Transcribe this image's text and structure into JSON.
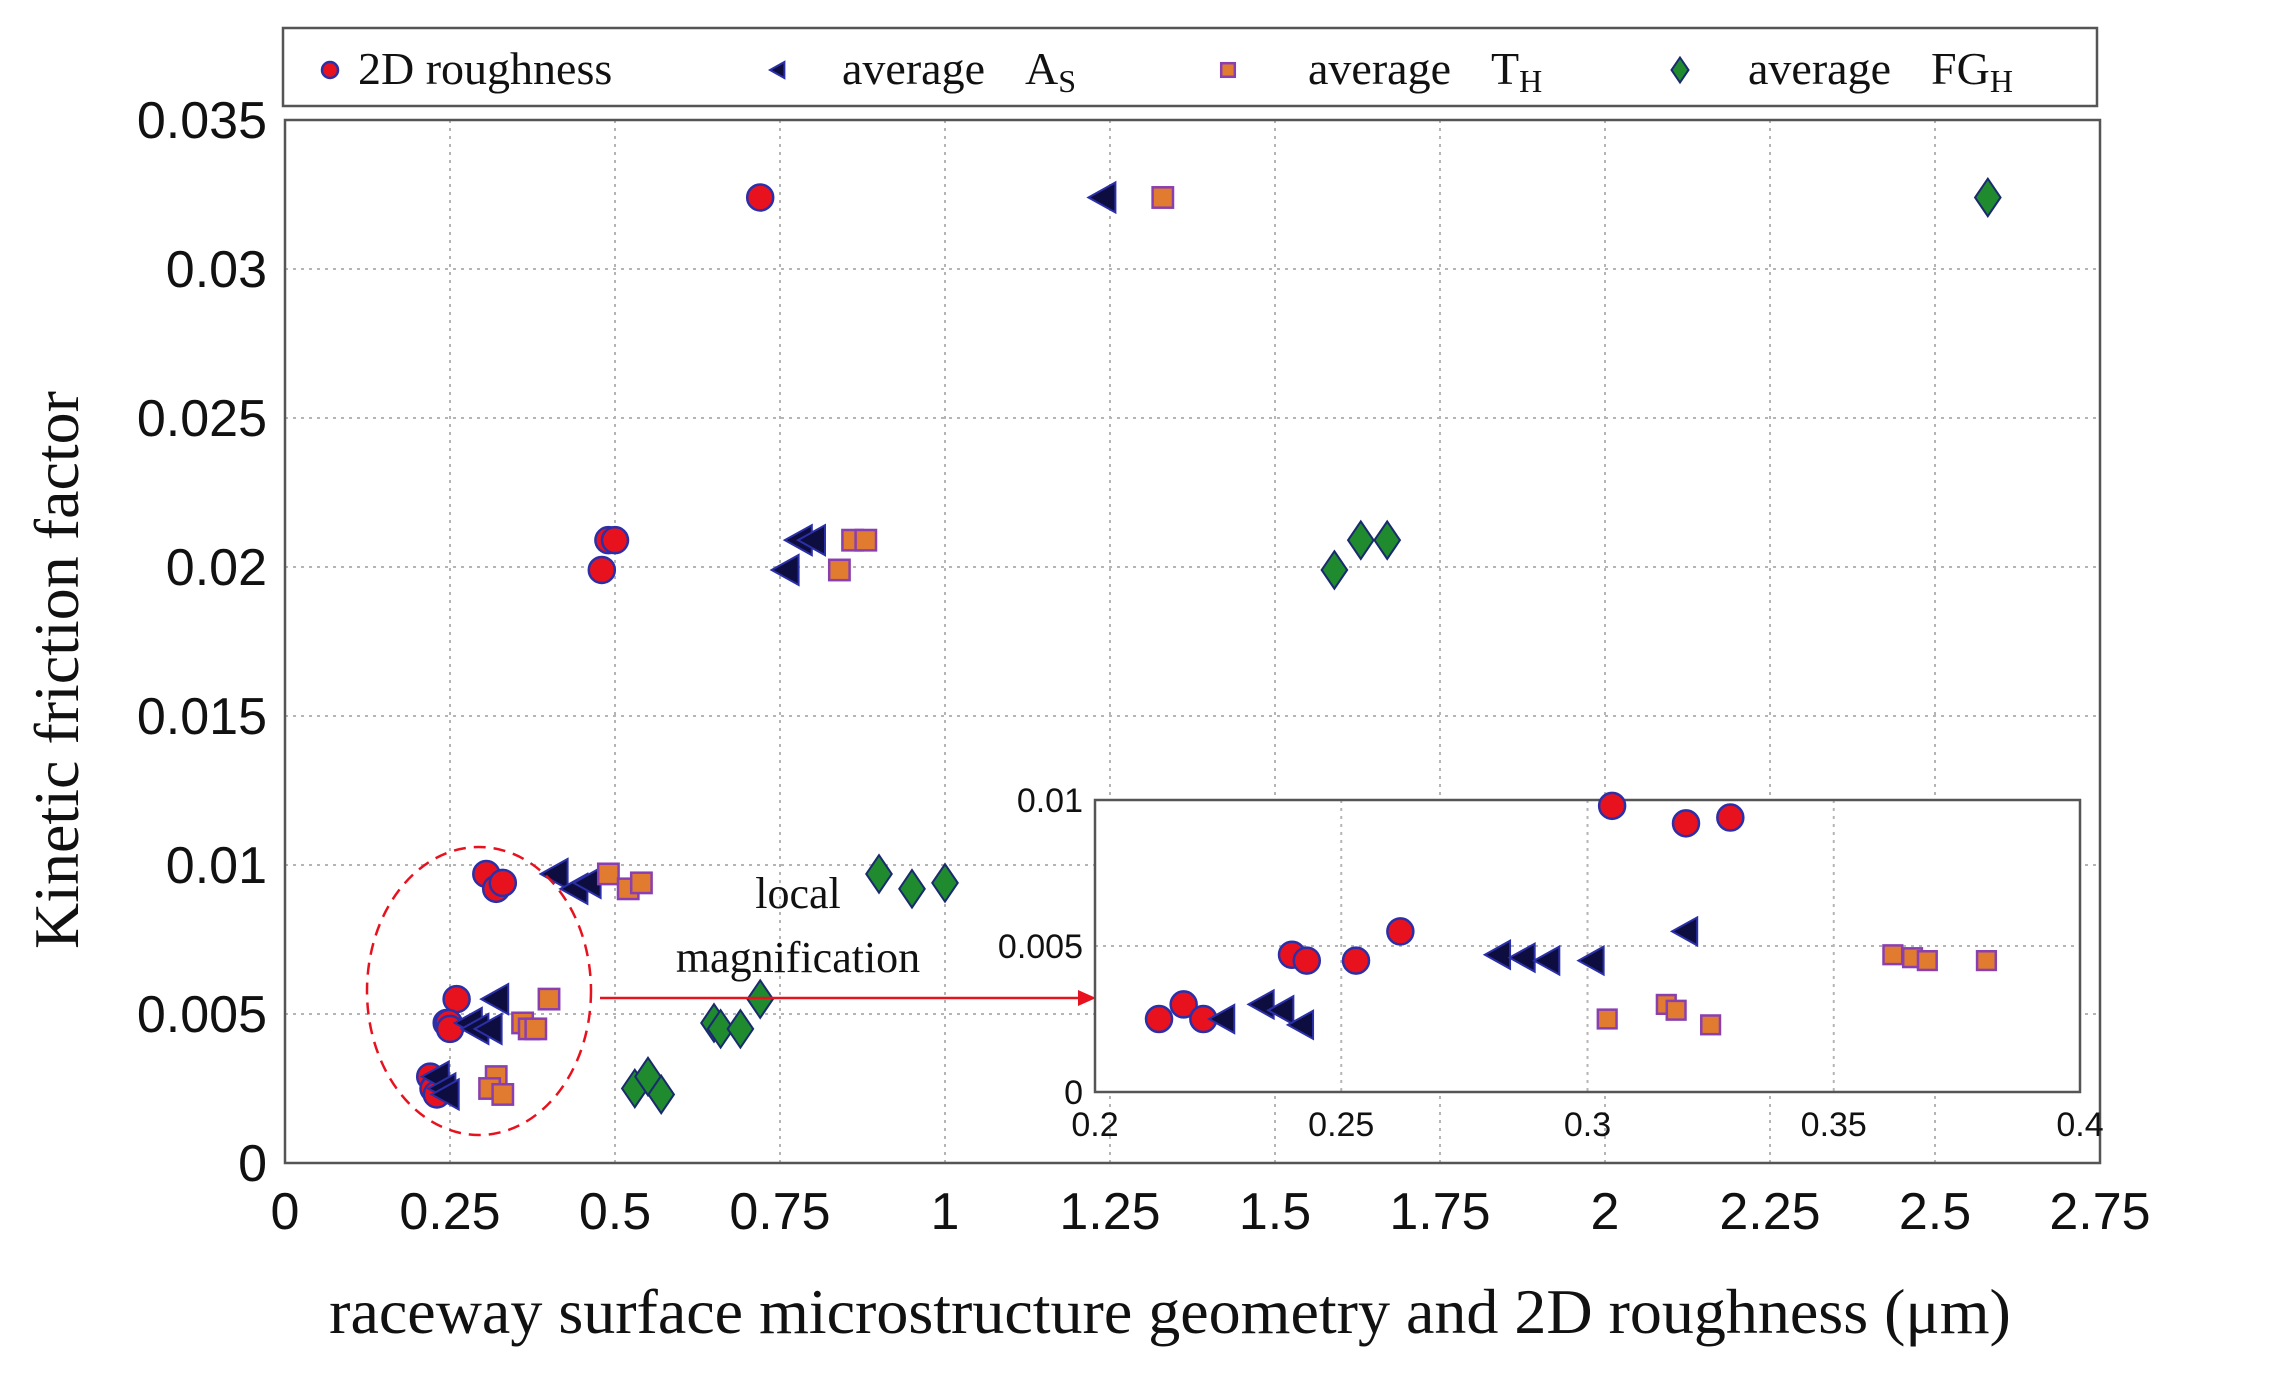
{
  "chart_data": {
    "type": "scatter",
    "main": {
      "xlabel": "raceway surface microstructure geometry and 2D roughness (μm)",
      "ylabel": "Kinetic friction factor",
      "xlim": [
        0,
        2.75
      ],
      "ylim": [
        0,
        0.035
      ],
      "xticks": [
        "0",
        "0.25",
        "0.5",
        "0.75",
        "1",
        "1.25",
        "1.5",
        "1.75",
        "2",
        "2.25",
        "2.5",
        "2.75"
      ],
      "yticks": [
        "0",
        "0.005",
        "0.01",
        "0.015",
        "0.02",
        "0.025",
        "0.03",
        "0.035"
      ],
      "grid": true,
      "legend_position": "top",
      "series": [
        {
          "name": "2D roughness",
          "marker": "circle",
          "fill": "#e8121f",
          "edge": "#2b2fa8",
          "points": [
            {
              "x": 0.72,
              "y": 0.0324
            },
            {
              "x": 0.48,
              "y": 0.0199
            },
            {
              "x": 0.49,
              "y": 0.0209
            },
            {
              "x": 0.5,
              "y": 0.0209
            },
            {
              "x": 0.305,
              "y": 0.0097
            },
            {
              "x": 0.32,
              "y": 0.0092
            },
            {
              "x": 0.33,
              "y": 0.0094
            },
            {
              "x": 0.26,
              "y": 0.0055
            },
            {
              "x": 0.245,
              "y": 0.0047
            },
            {
              "x": 0.248,
              "y": 0.0047
            },
            {
              "x": 0.25,
              "y": 0.0045
            },
            {
              "x": 0.22,
              "y": 0.0029
            },
            {
              "x": 0.225,
              "y": 0.0025
            },
            {
              "x": 0.23,
              "y": 0.0023
            }
          ]
        },
        {
          "name": "average As",
          "label_main": "average",
          "label_letter": "A",
          "label_sub": "S",
          "marker": "triangle-left",
          "fill": "#0d0d40",
          "edge": "#2b2fa8",
          "points": [
            {
              "x": 1.24,
              "y": 0.0324
            },
            {
              "x": 0.76,
              "y": 0.0199
            },
            {
              "x": 0.78,
              "y": 0.0209
            },
            {
              "x": 0.8,
              "y": 0.0209
            },
            {
              "x": 0.41,
              "y": 0.0097
            },
            {
              "x": 0.44,
              "y": 0.0092
            },
            {
              "x": 0.46,
              "y": 0.0094
            },
            {
              "x": 0.32,
              "y": 0.0055
            },
            {
              "x": 0.28,
              "y": 0.0047
            },
            {
              "x": 0.29,
              "y": 0.0045
            },
            {
              "x": 0.31,
              "y": 0.0045
            },
            {
              "x": 0.23,
              "y": 0.0029
            },
            {
              "x": 0.24,
              "y": 0.0025
            },
            {
              "x": 0.245,
              "y": 0.0023
            }
          ]
        },
        {
          "name": "average TH",
          "label_main": "average",
          "label_letter": "T",
          "label_sub": "H",
          "marker": "square",
          "fill": "#e07b30",
          "edge": "#8a3fb0",
          "points": [
            {
              "x": 1.33,
              "y": 0.0324
            },
            {
              "x": 0.84,
              "y": 0.0199
            },
            {
              "x": 0.86,
              "y": 0.0209
            },
            {
              "x": 0.88,
              "y": 0.0209
            },
            {
              "x": 0.49,
              "y": 0.0097
            },
            {
              "x": 0.52,
              "y": 0.0092
            },
            {
              "x": 0.54,
              "y": 0.0094
            },
            {
              "x": 0.4,
              "y": 0.0055
            },
            {
              "x": 0.36,
              "y": 0.0047
            },
            {
              "x": 0.37,
              "y": 0.0045
            },
            {
              "x": 0.38,
              "y": 0.0045
            },
            {
              "x": 0.32,
              "y": 0.0029
            },
            {
              "x": 0.31,
              "y": 0.0025
            },
            {
              "x": 0.33,
              "y": 0.0023
            }
          ]
        },
        {
          "name": "average FGH",
          "label_main": "average",
          "label_letter": "FG",
          "label_sub": "H",
          "marker": "diamond",
          "fill": "#1f8a2e",
          "edge": "#1a2a6e",
          "points": [
            {
              "x": 2.58,
              "y": 0.0324
            },
            {
              "x": 1.59,
              "y": 0.0199
            },
            {
              "x": 1.63,
              "y": 0.0209
            },
            {
              "x": 1.67,
              "y": 0.0209
            },
            {
              "x": 0.9,
              "y": 0.0097
            },
            {
              "x": 0.95,
              "y": 0.0092
            },
            {
              "x": 1.0,
              "y": 0.0094
            },
            {
              "x": 0.72,
              "y": 0.0055
            },
            {
              "x": 0.65,
              "y": 0.0047
            },
            {
              "x": 0.66,
              "y": 0.0045
            },
            {
              "x": 0.69,
              "y": 0.0045
            },
            {
              "x": 0.53,
              "y": 0.0025
            },
            {
              "x": 0.55,
              "y": 0.0029
            },
            {
              "x": 0.57,
              "y": 0.0023
            }
          ]
        }
      ]
    },
    "inset": {
      "xlim": [
        0.2,
        0.4
      ],
      "ylim": [
        0,
        0.01
      ],
      "xticks": [
        "0.2",
        "0.25",
        "0.3",
        "0.35",
        "0.4"
      ],
      "yticks": [
        "0",
        "0.005",
        "0.01"
      ],
      "grid": true,
      "series": [
        {
          "name": "2D roughness",
          "points": [
            {
              "x": 0.213,
              "y": 0.0025
            },
            {
              "x": 0.218,
              "y": 0.003
            },
            {
              "x": 0.222,
              "y": 0.0025
            },
            {
              "x": 0.24,
              "y": 0.0047
            },
            {
              "x": 0.243,
              "y": 0.0045
            },
            {
              "x": 0.253,
              "y": 0.0045
            },
            {
              "x": 0.262,
              "y": 0.0055
            },
            {
              "x": 0.305,
              "y": 0.0098
            },
            {
              "x": 0.32,
              "y": 0.0092
            },
            {
              "x": 0.329,
              "y": 0.0094
            }
          ]
        },
        {
          "name": "average As",
          "points": [
            {
              "x": 0.226,
              "y": 0.0025
            },
            {
              "x": 0.234,
              "y": 0.003
            },
            {
              "x": 0.238,
              "y": 0.0028
            },
            {
              "x": 0.242,
              "y": 0.0023
            },
            {
              "x": 0.282,
              "y": 0.0047
            },
            {
              "x": 0.287,
              "y": 0.0046
            },
            {
              "x": 0.292,
              "y": 0.0045
            },
            {
              "x": 0.301,
              "y": 0.0045
            },
            {
              "x": 0.32,
              "y": 0.0055
            }
          ]
        },
        {
          "name": "average TH",
          "points": [
            {
              "x": 0.304,
              "y": 0.0025
            },
            {
              "x": 0.316,
              "y": 0.003
            },
            {
              "x": 0.318,
              "y": 0.0028
            },
            {
              "x": 0.325,
              "y": 0.0023
            },
            {
              "x": 0.362,
              "y": 0.0047
            },
            {
              "x": 0.366,
              "y": 0.0046
            },
            {
              "x": 0.369,
              "y": 0.0045
            },
            {
              "x": 0.381,
              "y": 0.0045
            }
          ]
        }
      ]
    },
    "annotations": {
      "local": "local",
      "magnification": "magnification"
    }
  }
}
